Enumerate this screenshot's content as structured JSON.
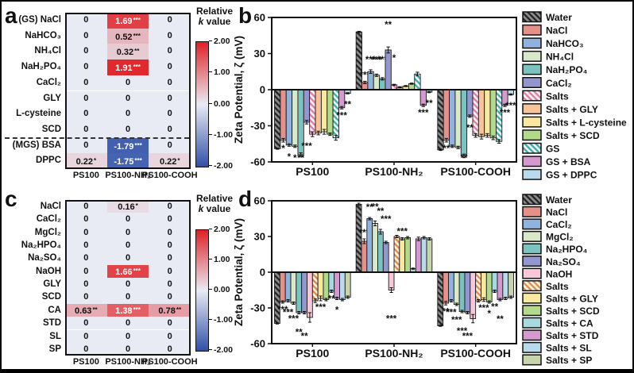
{
  "panels": {
    "a": {
      "letter": "a",
      "columns": [
        "PS100",
        "PS100-NH₂",
        "PS100-COOH"
      ],
      "rows": [
        {
          "label": "(GS) NaCl",
          "divider_above": false,
          "cells": [
            {
              "t": "0",
              "v": 0,
              "s": ""
            },
            {
              "t": "1.69",
              "v": 1.69,
              "s": "***"
            },
            {
              "t": "0",
              "v": 0,
              "s": ""
            }
          ]
        },
        {
          "label": "NaHCO₃",
          "divider_above": false,
          "cells": [
            {
              "t": "0",
              "v": 0,
              "s": ""
            },
            {
              "t": "0.52",
              "v": 0.52,
              "s": "***"
            },
            {
              "t": "0",
              "v": 0,
              "s": ""
            }
          ]
        },
        {
          "label": "NH₄Cl",
          "divider_above": false,
          "cells": [
            {
              "t": "0",
              "v": 0,
              "s": ""
            },
            {
              "t": "0.32",
              "v": 0.32,
              "s": "**"
            },
            {
              "t": "0",
              "v": 0,
              "s": ""
            }
          ]
        },
        {
          "label": "NaH₂PO₄",
          "divider_above": false,
          "cells": [
            {
              "t": "0",
              "v": 0,
              "s": ""
            },
            {
              "t": "1.91",
              "v": 1.91,
              "s": "***"
            },
            {
              "t": "0",
              "v": 0,
              "s": ""
            }
          ]
        },
        {
          "label": "CaCl₂",
          "divider_above": false,
          "cells": [
            {
              "t": "0",
              "v": 0,
              "s": ""
            },
            {
              "t": "0",
              "v": 0,
              "s": ""
            },
            {
              "t": "0",
              "v": 0,
              "s": ""
            }
          ]
        },
        {
          "label": "GLY",
          "divider_above": false,
          "cells": [
            {
              "t": "0",
              "v": 0,
              "s": ""
            },
            {
              "t": "0",
              "v": 0,
              "s": ""
            },
            {
              "t": "0",
              "v": 0,
              "s": ""
            }
          ]
        },
        {
          "label": "L-cysteine",
          "divider_above": false,
          "cells": [
            {
              "t": "0",
              "v": 0,
              "s": ""
            },
            {
              "t": "0",
              "v": 0,
              "s": ""
            },
            {
              "t": "0",
              "v": 0,
              "s": ""
            }
          ]
        },
        {
          "label": "SCD",
          "divider_above": false,
          "cells": [
            {
              "t": "0",
              "v": 0,
              "s": ""
            },
            {
              "t": "0",
              "v": 0,
              "s": ""
            },
            {
              "t": "0",
              "v": 0,
              "s": ""
            }
          ]
        },
        {
          "label": "(MGS) BSA",
          "divider_above": true,
          "cells": [
            {
              "t": "0",
              "v": 0,
              "s": ""
            },
            {
              "t": "-1.79",
              "v": -1.79,
              "s": "***"
            },
            {
              "t": "0",
              "v": 0,
              "s": ""
            }
          ]
        },
        {
          "label": "DPPC",
          "divider_above": false,
          "cells": [
            {
              "t": "0.22",
              "v": 0.22,
              "s": "*"
            },
            {
              "t": "-1.75",
              "v": -1.75,
              "s": "***"
            },
            {
              "t": "0.22",
              "v": 0.22,
              "s": "*"
            }
          ]
        }
      ],
      "colorbar": {
        "title_line1": "Relative",
        "title_italic": "k",
        "title_rest": " value",
        "ticks": [
          "2.00",
          "1.00",
          "0.00",
          "-1.00",
          "-2.00"
        ]
      }
    },
    "c": {
      "letter": "c",
      "columns": [
        "PS100",
        "PS100-NH₂",
        "PS100-COOH"
      ],
      "rows": [
        {
          "label": "NaCl",
          "divider_above": false,
          "cells": [
            {
              "t": "0",
              "v": 0,
              "s": ""
            },
            {
              "t": "0.16",
              "v": 0.16,
              "s": "*"
            },
            {
              "t": "0",
              "v": 0,
              "s": ""
            }
          ]
        },
        {
          "label": "CaCl₂",
          "divider_above": false,
          "cells": [
            {
              "t": "0",
              "v": 0,
              "s": ""
            },
            {
              "t": "0",
              "v": 0,
              "s": ""
            },
            {
              "t": "0",
              "v": 0,
              "s": ""
            }
          ]
        },
        {
          "label": "MgCl₂",
          "divider_above": false,
          "cells": [
            {
              "t": "0",
              "v": 0,
              "s": ""
            },
            {
              "t": "0",
              "v": 0,
              "s": ""
            },
            {
              "t": "0",
              "v": 0,
              "s": ""
            }
          ]
        },
        {
          "label": "Na₂HPO₄",
          "divider_above": false,
          "cells": [
            {
              "t": "0",
              "v": 0,
              "s": ""
            },
            {
              "t": "0",
              "v": 0,
              "s": ""
            },
            {
              "t": "0",
              "v": 0,
              "s": ""
            }
          ]
        },
        {
          "label": "Na₂SO₄",
          "divider_above": false,
          "cells": [
            {
              "t": "0",
              "v": 0,
              "s": ""
            },
            {
              "t": "0",
              "v": 0,
              "s": ""
            },
            {
              "t": "0",
              "v": 0,
              "s": ""
            }
          ]
        },
        {
          "label": "NaOH",
          "divider_above": false,
          "cells": [
            {
              "t": "0",
              "v": 0,
              "s": ""
            },
            {
              "t": "1.66",
              "v": 1.66,
              "s": "***"
            },
            {
              "t": "0",
              "v": 0,
              "s": ""
            }
          ]
        },
        {
          "label": "GLY",
          "divider_above": false,
          "cells": [
            {
              "t": "0",
              "v": 0,
              "s": ""
            },
            {
              "t": "0",
              "v": 0,
              "s": ""
            },
            {
              "t": "0",
              "v": 0,
              "s": ""
            }
          ]
        },
        {
          "label": "SCD",
          "divider_above": false,
          "cells": [
            {
              "t": "0",
              "v": 0,
              "s": ""
            },
            {
              "t": "0",
              "v": 0,
              "s": ""
            },
            {
              "t": "0",
              "v": 0,
              "s": ""
            }
          ]
        },
        {
          "label": "CA",
          "divider_above": false,
          "cells": [
            {
              "t": "0.63",
              "v": 0.63,
              "s": "**"
            },
            {
              "t": "1.38",
              "v": 1.38,
              "s": "***"
            },
            {
              "t": "0.78",
              "v": 0.78,
              "s": "**"
            }
          ]
        },
        {
          "label": "STD",
          "divider_above": false,
          "cells": [
            {
              "t": "0",
              "v": 0,
              "s": ""
            },
            {
              "t": "0",
              "v": 0,
              "s": ""
            },
            {
              "t": "0",
              "v": 0,
              "s": ""
            }
          ]
        },
        {
          "label": "SL",
          "divider_above": false,
          "cells": [
            {
              "t": "0",
              "v": 0,
              "s": ""
            },
            {
              "t": "0",
              "v": 0,
              "s": ""
            },
            {
              "t": "0",
              "v": 0,
              "s": ""
            }
          ]
        },
        {
          "label": "SP",
          "divider_above": false,
          "cells": [
            {
              "t": "0",
              "v": 0,
              "s": ""
            },
            {
              "t": "0",
              "v": 0,
              "s": ""
            },
            {
              "t": "0",
              "v": 0,
              "s": ""
            }
          ]
        }
      ],
      "colorbar": {
        "title_line1": "Relative",
        "title_italic": "k",
        "title_rest": " value",
        "ticks": [
          "2.00",
          "1.00",
          "0.00",
          "-1.00",
          "-2.00"
        ]
      }
    },
    "b": {
      "letter": "b"
    },
    "d": {
      "letter": "d"
    }
  },
  "chart_data": [
    {
      "type": "bar",
      "panel": "b",
      "ylabel": "Zeta Potential, ζ (mV)",
      "ylim": [
        -60,
        60
      ],
      "yticks": [
        60,
        30,
        0,
        -30,
        -60
      ],
      "categories": [
        "PS100",
        "PS100-NH₂",
        "PS100-COOH"
      ],
      "legend_position": "right",
      "series": [
        {
          "name": "Water",
          "hatch": {
            "bg": "#8c8c8c",
            "fg": "#222222"
          },
          "values": [
            -49,
            48,
            -50
          ],
          "errs": [
            0.5,
            0.5,
            0.5
          ],
          "stars": [
            "",
            "",
            ""
          ]
        },
        {
          "name": "NaCl",
          "color": "#e59089",
          "values": [
            -42,
            6,
            -42
          ],
          "errs": [
            1.5,
            1,
            1.5
          ],
          "stars": [
            "*",
            "***",
            "**"
          ]
        },
        {
          "name": "NaHCO₃",
          "color": "#8fb3de",
          "values": [
            -46,
            15,
            -47
          ],
          "errs": [
            1,
            1.5,
            1
          ],
          "stars": [
            "*",
            "***",
            ""
          ]
        },
        {
          "name": "NH₄Cl",
          "color": "#d8e8c8",
          "values": [
            -47,
            12,
            -48
          ],
          "errs": [
            1,
            1,
            1
          ],
          "stars": [
            "*",
            "***",
            ""
          ]
        },
        {
          "name": "NaH₂PO₄",
          "color": "#7cc2c0",
          "values": [
            -54,
            9,
            -55
          ],
          "errs": [
            1.5,
            1,
            1.5
          ],
          "stars": [
            "**",
            "***",
            "**"
          ]
        },
        {
          "name": "CaCl₂",
          "color": "#9497ce",
          "values": [
            -27,
            33,
            -22
          ],
          "errs": [
            1.5,
            2.5,
            1
          ],
          "stars": [
            "***",
            "**",
            "**"
          ]
        },
        {
          "name": "Salts",
          "hatch": {
            "bg": "#fcf0f4",
            "fg": "#e17ba4"
          },
          "values": [
            -37,
            4,
            -38
          ],
          "errs": [
            2,
            0.5,
            1.5
          ],
          "stars": [
            "",
            "*",
            ""
          ]
        },
        {
          "name": "Salts + GLY",
          "color": "#f6c49a",
          "values": [
            -36,
            2,
            -39
          ],
          "errs": [
            1.5,
            0.5,
            2
          ],
          "stars": [
            "",
            "",
            ""
          ]
        },
        {
          "name": "Salts + L-cysteine",
          "color": "#f8e8a0",
          "values": [
            -35,
            3,
            -38
          ],
          "errs": [
            2,
            0.5,
            1.5
          ],
          "stars": [
            "",
            "",
            ""
          ]
        },
        {
          "name": "Salts + SCD",
          "color": "#b3d98b",
          "values": [
            -37,
            5,
            -40
          ],
          "errs": [
            1,
            0.5,
            1.5
          ],
          "stars": [
            "",
            "",
            ""
          ]
        },
        {
          "name": "GS",
          "hatch": {
            "bg": "#ecf6f6",
            "fg": "#43a8a8"
          },
          "values": [
            -40,
            13,
            -43
          ],
          "errs": [
            2,
            1.5,
            1.5
          ],
          "stars": [
            "",
            "",
            ""
          ]
        },
        {
          "name": "GS + BSA",
          "color": "#d49ad0",
          "values": [
            -15,
            -13,
            -13
          ],
          "errs": [
            1,
            1,
            1
          ],
          "stars": [
            "***",
            "***",
            "***"
          ]
        },
        {
          "name": "GS + DPPC",
          "color": "#b9d9ec",
          "values": [
            -3,
            -2,
            -4
          ],
          "errs": [
            0.5,
            0.5,
            0.5
          ],
          "stars": [
            "**",
            "**",
            "***"
          ]
        }
      ]
    },
    {
      "type": "bar",
      "panel": "d",
      "ylabel": "Zeta Potential, ζ (mV)",
      "ylim": [
        -60,
        60
      ],
      "yticks": [
        60,
        30,
        0,
        -30,
        -60
      ],
      "categories": [
        "PS100",
        "PS100-NH₂",
        "PS100-COOH"
      ],
      "legend_position": "right",
      "series": [
        {
          "name": "Water",
          "hatch": {
            "bg": "#8c8c8c",
            "fg": "#222222"
          },
          "values": [
            -43,
            57,
            -45
          ],
          "errs": [
            0.5,
            1,
            0.5
          ],
          "stars": [
            "",
            "",
            ""
          ]
        },
        {
          "name": "NaCl",
          "color": "#e59089",
          "values": [
            -25,
            26,
            -26
          ],
          "errs": [
            1,
            2,
            1.5
          ],
          "stars": [
            "***",
            "***",
            "**"
          ]
        },
        {
          "name": "CaCl₂",
          "color": "#8fb3de",
          "values": [
            -24,
            45,
            -24
          ],
          "errs": [
            1,
            1,
            1
          ],
          "stars": [
            "***",
            "**",
            "***"
          ]
        },
        {
          "name": "MgCl₂",
          "color": "#d8e8c8",
          "values": [
            -26,
            41,
            -27
          ],
          "errs": [
            1,
            2,
            1
          ],
          "stars": [
            "***",
            "**",
            "***"
          ]
        },
        {
          "name": "Na₂HPO₄",
          "color": "#7cc2c0",
          "values": [
            -34,
            34,
            -33
          ],
          "errs": [
            1,
            2,
            1
          ],
          "stars": [
            "**",
            "**",
            "***"
          ]
        },
        {
          "name": "Na₂SO₄",
          "color": "#9497ce",
          "values": [
            -34,
            25,
            -34
          ],
          "errs": [
            1,
            1,
            1
          ],
          "stars": [
            "**",
            "***",
            "***"
          ]
        },
        {
          "name": "NaOH",
          "color": "#f8c8da",
          "values": [
            -38,
            -15,
            -39
          ],
          "errs": [
            4,
            2,
            3.5
          ],
          "stars": [
            "",
            "***",
            ""
          ]
        },
        {
          "name": "Salts",
          "hatch": {
            "bg": "#fdf3e3",
            "fg": "#e08a4a"
          },
          "values": [
            -24,
            30,
            -24
          ],
          "errs": [
            1.5,
            1,
            1
          ],
          "stars": [
            "",
            "",
            ""
          ]
        },
        {
          "name": "Salts + GLY",
          "color": "#f8e8a0",
          "values": [
            -22,
            28,
            -23
          ],
          "errs": [
            2,
            1,
            1.5
          ],
          "stars": [
            "***",
            "***",
            "***"
          ]
        },
        {
          "name": "Salts + SCD",
          "color": "#b3d98b",
          "values": [
            -23,
            29,
            -25
          ],
          "errs": [
            1,
            1,
            1
          ],
          "stars": [
            "",
            "",
            "*"
          ]
        },
        {
          "name": "Salts + CA",
          "color": "#a8d8e0",
          "values": [
            -16,
            3,
            -16
          ],
          "errs": [
            1,
            0.5,
            1
          ],
          "stars": [
            "**",
            "",
            "**"
          ]
        },
        {
          "name": "Salts + STD",
          "color": "#d49ad0",
          "values": [
            -22,
            28,
            -23
          ],
          "errs": [
            1,
            1.5,
            1
          ],
          "stars": [
            "*",
            "",
            "**"
          ]
        },
        {
          "name": "Salts + SL",
          "color": "#b9d9ec",
          "values": [
            -23,
            29,
            -22
          ],
          "errs": [
            1,
            1,
            1
          ],
          "stars": [
            "",
            "",
            ""
          ]
        },
        {
          "name": "Salts + SP",
          "color": "#c8d4ac",
          "values": [
            -21,
            28,
            -21
          ],
          "errs": [
            1,
            1,
            1
          ],
          "stars": [
            "",
            "",
            ""
          ]
        }
      ]
    }
  ]
}
